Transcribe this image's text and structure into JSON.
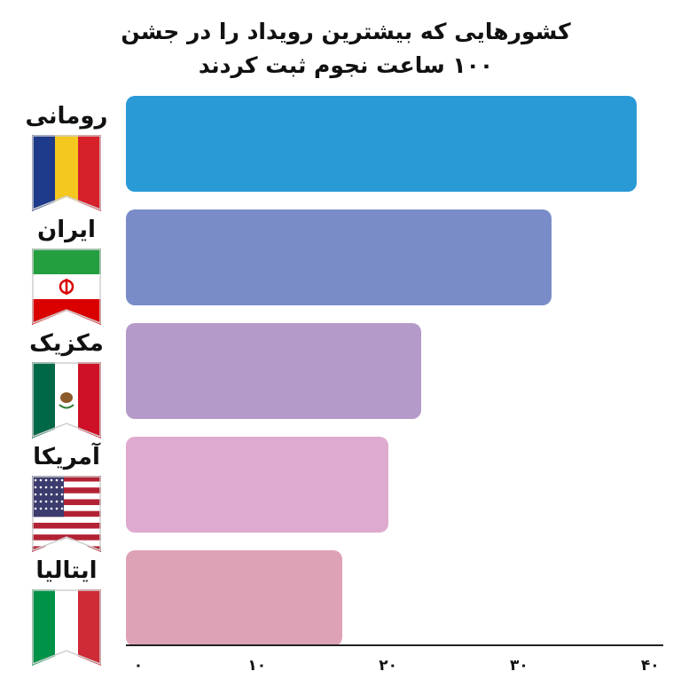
{
  "chart_data": {
    "type": "bar",
    "orientation": "horizontal",
    "title": "کشورهایی که بیشترین رویداد را در جشن",
    "subtitle": "۱۰۰ ساعت نجوم ثبت کردند",
    "categories": [
      "رومانی",
      "ایران",
      "مکزیک",
      "آمریکا",
      "ایتالیا"
    ],
    "values": [
      39,
      32.5,
      22.5,
      20,
      16.5
    ],
    "xlim": [
      0,
      41
    ],
    "ticks": [
      0,
      10,
      20,
      30,
      40
    ],
    "tick_labels": [
      "۰",
      "۱۰",
      "۲۰",
      "۳۰",
      "۴۰"
    ],
    "bar_colors": [
      "#2A9AD6",
      "#7A8CC8",
      "#B49AC8",
      "#DFAACF",
      "#DEA2B6"
    ],
    "xlabel": "",
    "ylabel": "",
    "grid": false
  },
  "flags": [
    "romania-flag",
    "iran-flag",
    "mexico-flag",
    "usa-flag",
    "italy-flag"
  ]
}
